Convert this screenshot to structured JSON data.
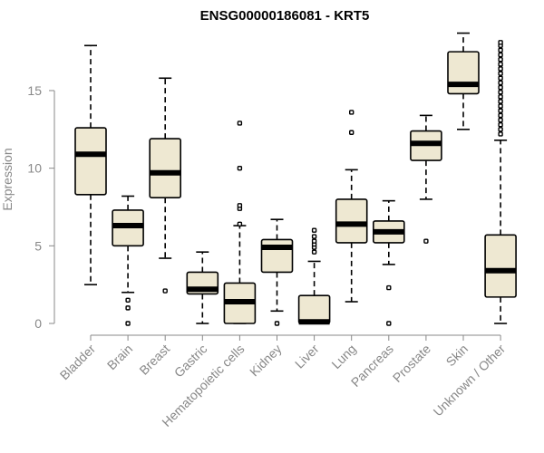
{
  "chart_data": {
    "type": "box",
    "title": "ENSG00000186081 - KRT5",
    "xlabel": "",
    "ylabel": "Expression",
    "ylim": [
      0,
      18.5
    ],
    "yticks": [
      0,
      5,
      10,
      15
    ],
    "grid": false,
    "legend": "none",
    "colors": {
      "box_fill": "#eee8d2",
      "box_stroke": "#000000",
      "axis": "#888888"
    },
    "categories": [
      "Bladder",
      "Brain",
      "Breast",
      "Gastric",
      "Hematopoietic cells",
      "Kidney",
      "Liver",
      "Lung",
      "Pancreas",
      "Prostate",
      "Skin",
      "Unknown / Other"
    ],
    "boxes": [
      {
        "min": 2.5,
        "q1": 8.3,
        "median": 10.9,
        "q3": 12.6,
        "max": 17.9,
        "outliers": []
      },
      {
        "min": 2.0,
        "q1": 5.0,
        "median": 6.3,
        "q3": 7.3,
        "max": 8.2,
        "outliers": [
          1.5,
          1.0,
          0.0
        ]
      },
      {
        "min": 4.2,
        "q1": 8.1,
        "median": 9.7,
        "q3": 11.9,
        "max": 15.8,
        "outliers": [
          2.1
        ]
      },
      {
        "min": 0.0,
        "q1": 1.9,
        "median": 2.2,
        "q3": 3.3,
        "max": 4.6,
        "outliers": []
      },
      {
        "min": 0.0,
        "q1": 0.0,
        "median": 1.4,
        "q3": 2.6,
        "max": 6.3,
        "outliers": [
          6.4,
          7.4,
          7.6,
          10.0,
          12.9
        ]
      },
      {
        "min": 0.8,
        "q1": 3.3,
        "median": 4.9,
        "q3": 5.4,
        "max": 6.7,
        "outliers": [
          0.0
        ]
      },
      {
        "min": 0.0,
        "q1": 0.0,
        "median": 0.1,
        "q3": 1.8,
        "max": 4.0,
        "outliers": [
          4.6,
          4.9,
          5.1,
          5.3,
          5.6,
          6.0
        ]
      },
      {
        "min": 1.4,
        "q1": 5.2,
        "median": 6.4,
        "q3": 8.0,
        "max": 9.9,
        "outliers": [
          12.3,
          13.6
        ]
      },
      {
        "min": 3.8,
        "q1": 5.2,
        "median": 5.9,
        "q3": 6.6,
        "max": 7.9,
        "outliers": [
          2.3,
          0.0
        ]
      },
      {
        "min": 8.0,
        "q1": 10.5,
        "median": 11.6,
        "q3": 12.4,
        "max": 13.4,
        "outliers": [
          5.3
        ]
      },
      {
        "min": 12.5,
        "q1": 14.8,
        "median": 15.4,
        "q3": 17.5,
        "max": 18.7,
        "outliers": []
      },
      {
        "min": 0.0,
        "q1": 1.7,
        "median": 3.4,
        "q3": 5.7,
        "max": 11.8,
        "outliers": [
          12.2,
          12.5,
          12.8,
          13.1,
          13.4,
          13.7,
          14.0,
          14.3,
          14.6,
          14.9,
          15.2,
          15.5,
          15.8,
          16.1,
          16.4,
          16.7,
          17.0,
          17.3,
          17.6,
          17.9,
          18.1
        ]
      }
    ]
  }
}
